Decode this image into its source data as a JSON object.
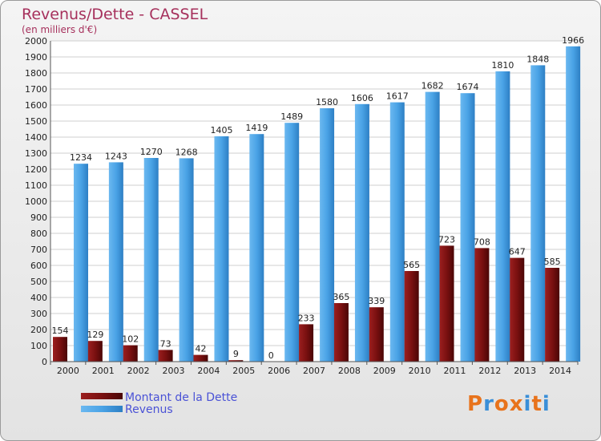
{
  "chart_data": {
    "type": "bar",
    "title": "Revenus/Dette - CASSEL",
    "subtitle": "(en milliers d'€)",
    "categories": [
      "2000",
      "2001",
      "2002",
      "2003",
      "2004",
      "2005",
      "2006",
      "2007",
      "2008",
      "2009",
      "2010",
      "2011",
      "2012",
      "2013",
      "2014"
    ],
    "series": [
      {
        "name": "Montant de la Dette",
        "color": "#7b0f0f",
        "values": [
          154,
          129,
          102,
          73,
          42,
          9,
          0,
          233,
          365,
          339,
          565,
          723,
          708,
          647,
          585
        ]
      },
      {
        "name": "Revenus",
        "color": "#4aa3e6",
        "values": [
          1234,
          1243,
          1270,
          1268,
          1405,
          1419,
          1489,
          1580,
          1606,
          1617,
          1682,
          1674,
          1810,
          1848,
          1966
        ]
      }
    ],
    "ylim": [
      0,
      2000
    ],
    "yticks": [
      0,
      100,
      200,
      300,
      400,
      500,
      600,
      700,
      800,
      900,
      1000,
      1100,
      1200,
      1300,
      1400,
      1500,
      1600,
      1700,
      1800,
      1900,
      2000
    ],
    "grid": true,
    "legend": "bottom-left"
  },
  "logo": {
    "letters": [
      "P",
      "r",
      "o",
      "x",
      "i",
      "t",
      "i"
    ],
    "colors": [
      "#e8731c",
      "#3a8fd8",
      "#e8731c",
      "#e8731c",
      "#3a8fd8",
      "#e8731c",
      "#3a8fd8"
    ]
  }
}
